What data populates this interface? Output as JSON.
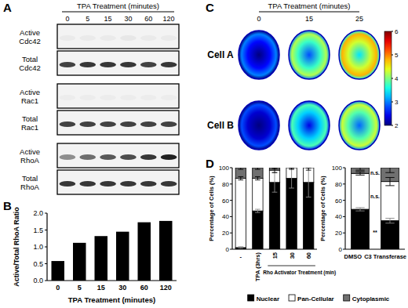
{
  "panel_labels": [
    "A",
    "B",
    "C",
    "D"
  ],
  "panels": {
    "A": {
      "title": "TPA Treatment (minutes)",
      "lanes": [
        "0",
        "5",
        "15",
        "30",
        "60",
        "120"
      ],
      "rows": [
        {
          "label": [
            "Active",
            "Cdc42"
          ],
          "bands": [
            0.04,
            0.04,
            0.04,
            0.05,
            0.04,
            0.04
          ]
        },
        {
          "label": [
            "Total",
            "Cdc42"
          ],
          "bands": [
            0.8,
            0.85,
            0.85,
            0.85,
            0.8,
            0.85
          ]
        },
        {
          "label": [
            "Active",
            "Rac1"
          ],
          "bands": [
            0.03,
            0.03,
            0.03,
            0.03,
            0.03,
            0.03
          ]
        },
        {
          "label": [
            "Total",
            "Rac1"
          ],
          "bands": [
            0.8,
            0.8,
            0.8,
            0.8,
            0.8,
            0.8
          ]
        },
        {
          "label": [
            "Active",
            "RhoA"
          ],
          "bands": [
            0.45,
            0.6,
            0.7,
            0.75,
            0.85,
            0.95
          ]
        },
        {
          "label": [
            "Total",
            "RhoA"
          ],
          "bands": [
            0.85,
            0.85,
            0.85,
            0.85,
            0.85,
            0.85
          ]
        }
      ]
    },
    "C": {
      "title": "TPA Treatment (minutes)",
      "times": [
        "0",
        "15",
        "25"
      ],
      "cells": [
        {
          "label": "Cell A",
          "intensity": [
            3.0,
            4.2,
            4.8
          ]
        },
        {
          "label": "Cell B",
          "intensity": [
            2.8,
            3.8,
            4.3
          ]
        }
      ],
      "colorbar": {
        "range": [
          2,
          6
        ],
        "ticks": [
          2,
          3,
          4,
          5,
          6
        ]
      }
    }
  },
  "chart_data": [
    {
      "type": "bar",
      "x_label": "TPA Treatment (minutes)",
      "y_label": "Active/Total RhoA Ratio",
      "categories": [
        "0",
        "5",
        "15",
        "30",
        "60",
        "120"
      ],
      "values": [
        0.58,
        1.12,
        1.32,
        1.45,
        1.73,
        1.77
      ],
      "color": "#000000",
      "ylim": [
        0,
        2
      ],
      "yticks": [
        {
          "value": 0,
          "label": "0.0"
        },
        {
          "value": 0.5,
          "label": "0.5"
        },
        {
          "value": 1,
          "label": "1.0"
        },
        {
          "value": 1.5,
          "label": "1.5"
        },
        {
          "value": 2,
          "label": "2.0"
        }
      ],
      "grid": false
    },
    {
      "type": "bar",
      "stacked": true,
      "y_label": "Percentage of Cells (%)",
      "categories": [
        "-",
        "TPA (3hrs)",
        "15",
        "30",
        "60"
      ],
      "series": [
        {
          "name": "Nuclear",
          "color": "#000000",
          "values": [
            2,
            47,
            82,
            87,
            82
          ],
          "errors": [
            1,
            2,
            12,
            12,
            18
          ]
        },
        {
          "name": "Pan-Cellular",
          "color": "#ffffff",
          "values": [
            85,
            40,
            15,
            13,
            18
          ],
          "errors": [
            2,
            2,
            3,
            2,
            3
          ]
        },
        {
          "name": "Cytoplasmic",
          "color": "#707070",
          "values": [
            13,
            13,
            3,
            0,
            0
          ],
          "errors": [
            2,
            2,
            1,
            0,
            0
          ]
        }
      ],
      "annotations": [
        {
          "text": "Rho Activator Treatment (min)",
          "categories": [
            "15",
            "30",
            "60"
          ]
        }
      ],
      "ylim": [
        0,
        100
      ],
      "yticks": [
        0,
        20,
        40,
        60,
        80,
        100
      ],
      "grid": false,
      "legend": "bottom"
    },
    {
      "type": "bar",
      "stacked": true,
      "y_label": "Percentage of Cells (%)",
      "categories": [
        "DMSO",
        "C3 Transferase"
      ],
      "series": [
        {
          "name": "Nuclear",
          "color": "#000000",
          "values": [
            49,
            35
          ],
          "errors": [
            2,
            3
          ]
        },
        {
          "name": "Pan-Cellular",
          "color": "#ffffff",
          "values": [
            44,
            48
          ],
          "errors": [
            2,
            5
          ]
        },
        {
          "name": "Cytoplasmic",
          "color": "#707070",
          "values": [
            7,
            17
          ],
          "errors": [
            3,
            6
          ]
        }
      ],
      "annotations": [
        {
          "text": "n.s.",
          "series": "Cytoplasmic"
        },
        {
          "text": "n.s.",
          "series": "Pan-Cellular"
        },
        {
          "text": "**",
          "series": "Nuclear"
        }
      ],
      "ylim": [
        0,
        100
      ],
      "yticks": [
        0,
        20,
        40,
        60,
        80,
        100
      ],
      "grid": false
    }
  ]
}
